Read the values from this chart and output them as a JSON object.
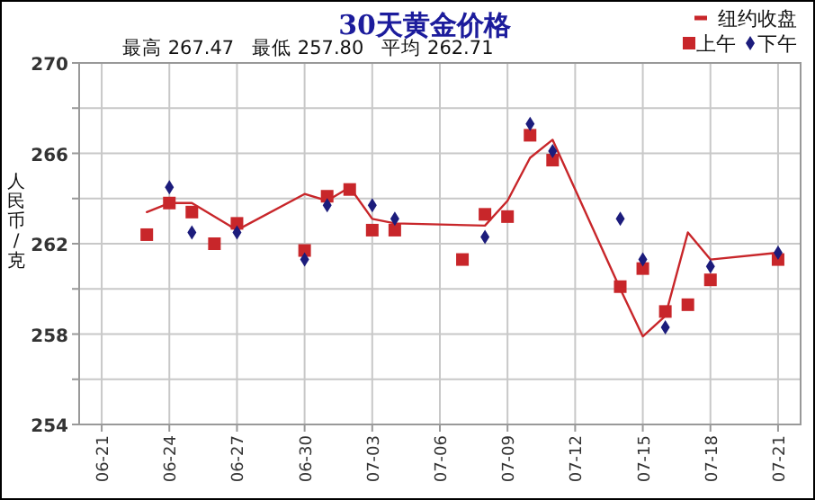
{
  "chart_data": {
    "type": "scatter",
    "title": "30天黄金价格",
    "subtitle": "最高 267.47   最低 257.80   平均 262.71",
    "ylabel": "人民币/克",
    "xlim": [
      "--06-20",
      "--07-22"
    ],
    "xticks": [
      {
        "value": "--06-21",
        "label": "06-21"
      },
      {
        "value": "--06-24",
        "label": "06-24"
      },
      {
        "value": "--06-27",
        "label": "06-27"
      },
      {
        "value": "--06-30",
        "label": "06-30"
      },
      {
        "value": "--07-03",
        "label": "07-03"
      },
      {
        "value": "--07-06",
        "label": "07-06"
      },
      {
        "value": "--07-09",
        "label": "07-09"
      },
      {
        "value": "--07-12",
        "label": "07-12"
      },
      {
        "value": "--07-15",
        "label": "07-15"
      },
      {
        "value": "--07-18",
        "label": "07-18"
      },
      {
        "value": "--07-21",
        "label": "07-21"
      }
    ],
    "ylim": [
      254,
      270
    ],
    "yticks": [
      254,
      {
        "value": 256,
        "label": null
      },
      258,
      {
        "value": 260,
        "label": null
      },
      262,
      {
        "value": 264,
        "label": null
      },
      266,
      {
        "value": 268,
        "label": null
      },
      270
    ],
    "grid": true,
    "legend": "top right",
    "series": [
      {
        "name": "纽约收盘",
        "type": "line",
        "marker": "none",
        "line_style": "solid",
        "color": "#c8262a",
        "x": [
          "--06-23",
          "--06-24",
          "--06-25",
          "--06-27",
          "--06-30",
          "--07-01",
          "--07-02",
          "--07-03",
          "--07-04",
          "--07-08",
          "--07-09",
          "--07-10",
          "--07-11",
          "--07-14",
          "--07-15",
          "--07-16",
          "--07-17",
          "--07-18",
          "--07-21"
        ],
        "values": [
          263.4,
          263.8,
          263.8,
          262.6,
          264.2,
          263.9,
          264.5,
          263.1,
          262.9,
          262.8,
          263.9,
          265.8,
          266.6,
          260.0,
          257.9,
          258.8,
          262.5,
          261.3,
          261.6
        ]
      },
      {
        "name": "上午",
        "type": "scatter",
        "marker": "square",
        "color": "#c8262a",
        "x": [
          "--06-23",
          "--06-24",
          "--06-25",
          "--06-26",
          "--06-27",
          "--06-30",
          "--07-01",
          "--07-02",
          "--07-03",
          "--07-04",
          "--07-07",
          "--07-08",
          "--07-09",
          "--07-10",
          "--07-11",
          "--07-14",
          "--07-15",
          "--07-16",
          "--07-17",
          "--07-18",
          "--07-21"
        ],
        "values": [
          262.4,
          263.8,
          263.4,
          262.0,
          262.9,
          261.7,
          264.1,
          264.4,
          262.6,
          262.6,
          261.3,
          263.3,
          263.2,
          266.8,
          265.7,
          260.1,
          260.9,
          259.0,
          259.3,
          260.4,
          261.3
        ]
      },
      {
        "name": "下午",
        "type": "scatter",
        "marker": "diamond",
        "color": "#1c1c7c",
        "x": [
          "--06-24",
          "--06-25",
          "--06-27",
          "--06-30",
          "--07-01",
          "--07-03",
          "--07-04",
          "--07-08",
          "--07-10",
          "--07-11",
          "--07-14",
          "--07-15",
          "--07-16",
          "--07-18",
          "--07-21"
        ],
        "values": [
          264.5,
          262.5,
          262.5,
          261.3,
          263.7,
          263.7,
          263.1,
          262.3,
          267.3,
          266.1,
          263.1,
          261.3,
          258.3,
          261.0,
          261.6
        ]
      }
    ]
  }
}
